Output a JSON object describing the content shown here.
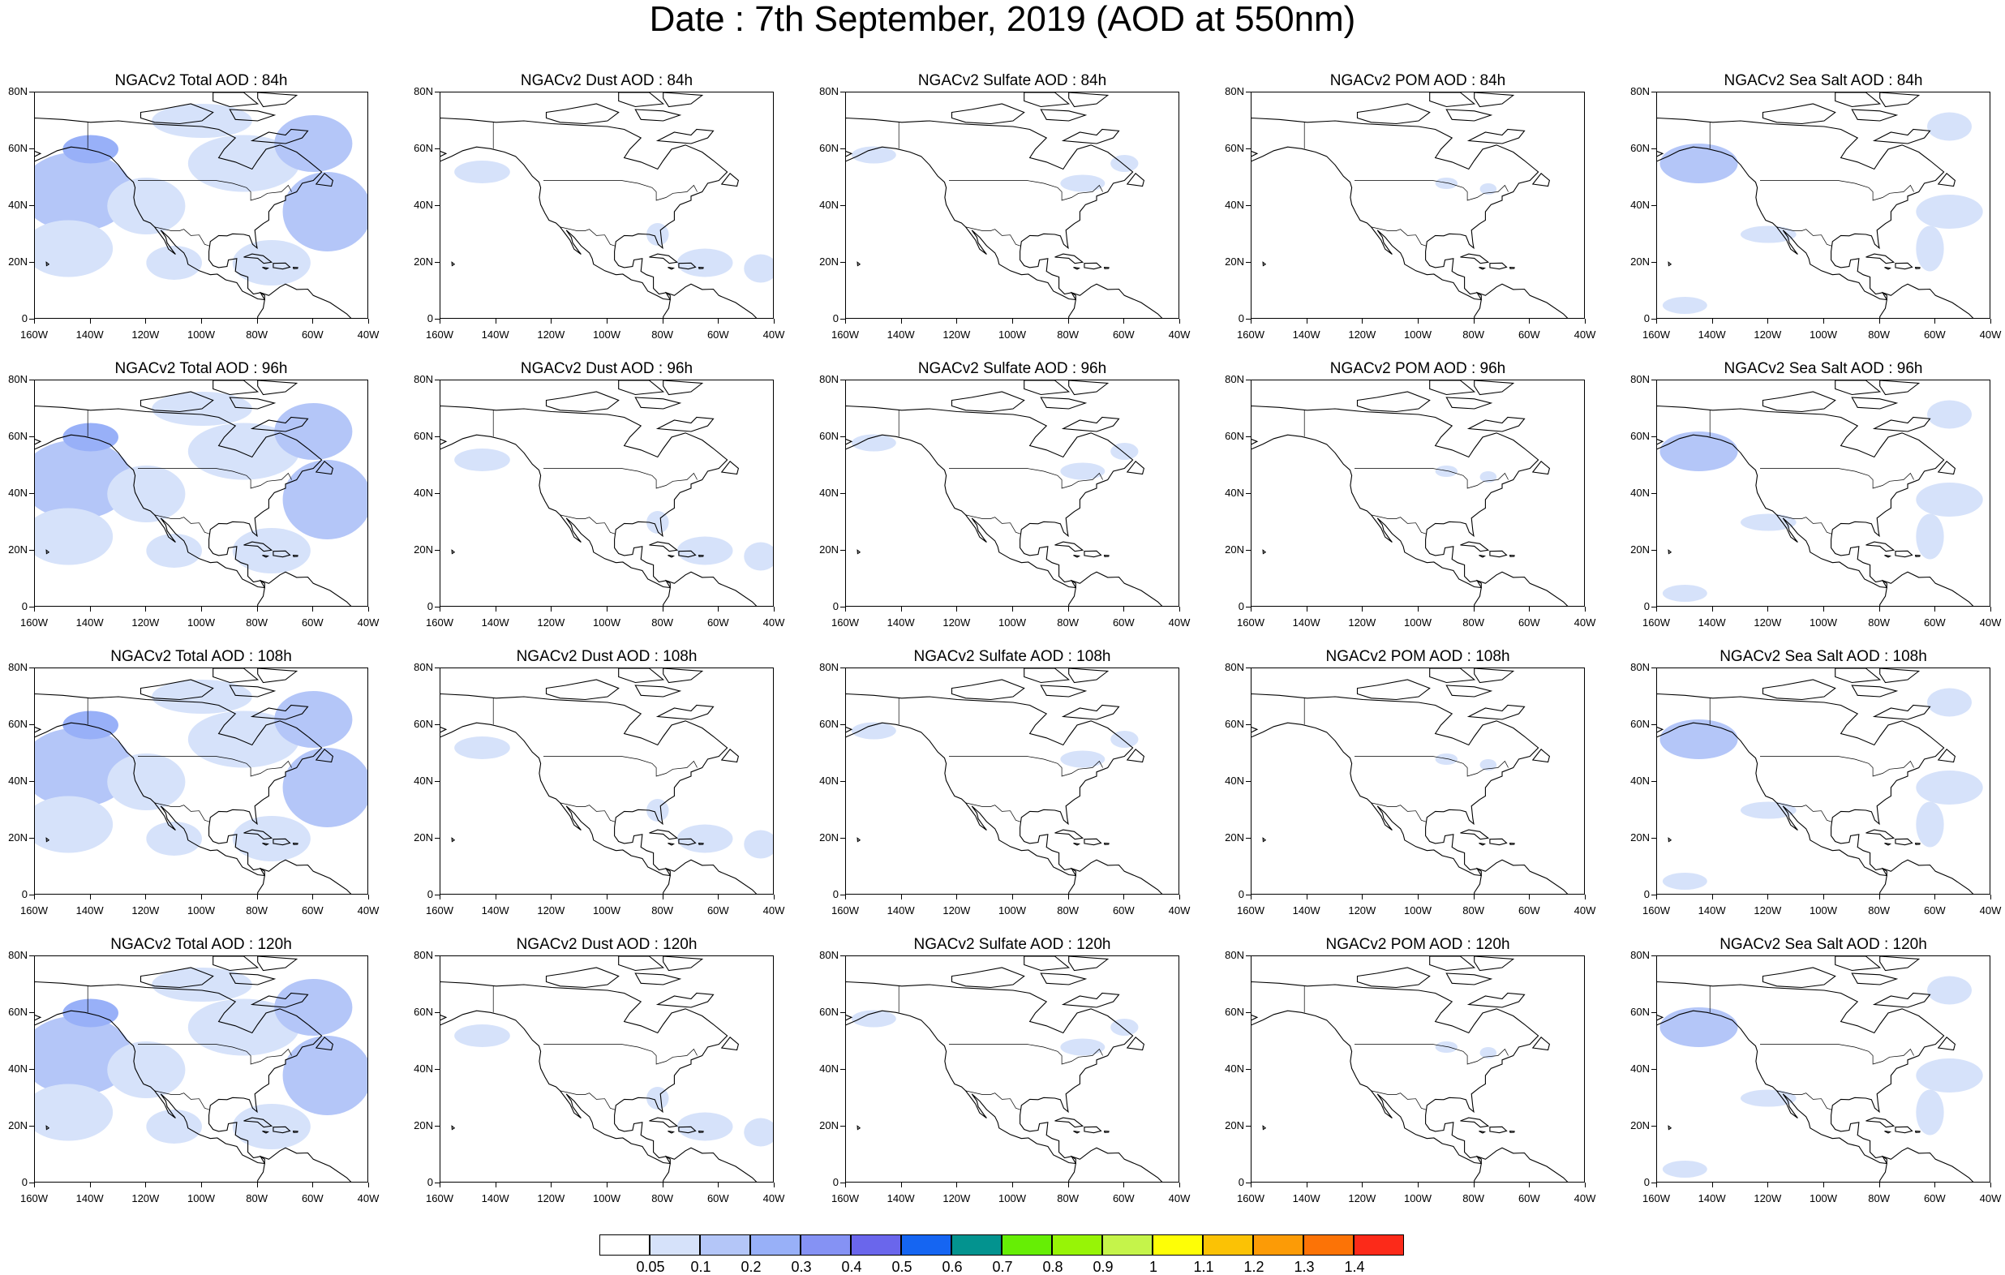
{
  "title": "Date : 7th September, 2019 (AOD at 550nm)",
  "lat_labels": [
    "80N",
    "60N",
    "40N",
    "20N",
    "0"
  ],
  "lon_labels": [
    "160W",
    "140W",
    "120W",
    "100W",
    "80W",
    "60W",
    "40W"
  ],
  "panels": [
    {
      "title": "NGACv2 Total AOD : 84h",
      "species": "total"
    },
    {
      "title": "NGACv2 Dust AOD : 84h",
      "species": "dust"
    },
    {
      "title": "NGACv2 Sulfate AOD : 84h",
      "species": "sulfate"
    },
    {
      "title": "NGACv2 POM AOD : 84h",
      "species": "pom"
    },
    {
      "title": "NGACv2 Sea Salt AOD : 84h",
      "species": "seasalt"
    },
    {
      "title": "NGACv2 Total AOD : 96h",
      "species": "total"
    },
    {
      "title": "NGACv2 Dust AOD : 96h",
      "species": "dust"
    },
    {
      "title": "NGACv2 Sulfate AOD : 96h",
      "species": "sulfate"
    },
    {
      "title": "NGACv2 POM AOD : 96h",
      "species": "pom"
    },
    {
      "title": "NGACv2 Sea Salt AOD : 96h",
      "species": "seasalt"
    },
    {
      "title": "NGACv2 Total AOD : 108h",
      "species": "total"
    },
    {
      "title": "NGACv2 Dust AOD : 108h",
      "species": "dust"
    },
    {
      "title": "NGACv2 Sulfate AOD : 108h",
      "species": "sulfate"
    },
    {
      "title": "NGACv2 POM AOD : 108h",
      "species": "pom"
    },
    {
      "title": "NGACv2 Sea Salt AOD : 108h",
      "species": "seasalt"
    },
    {
      "title": "NGACv2 Total AOD : 120h",
      "species": "total"
    },
    {
      "title": "NGACv2 Dust AOD : 120h",
      "species": "dust"
    },
    {
      "title": "NGACv2 Sulfate AOD : 120h",
      "species": "sulfate"
    },
    {
      "title": "NGACv2 POM AOD : 120h",
      "species": "pom"
    },
    {
      "title": "NGACv2 Sea Salt  AOD : 120h",
      "species": "seasalt"
    }
  ],
  "colorbar": {
    "labels": [
      "0.05",
      "0.1",
      "0.2",
      "0.3",
      "0.4",
      "0.5",
      "0.6",
      "0.7",
      "0.8",
      "0.9",
      "1",
      "1.1",
      "1.2",
      "1.3",
      "1.4"
    ],
    "colors": [
      "#ffffff",
      "#d6e2fa",
      "#b4c6f8",
      "#98b0f8",
      "#8592f4",
      "#6a66ec",
      "#1565f2",
      "#03938f",
      "#66ee05",
      "#97f406",
      "#c5f44a",
      "#fefe06",
      "#fbc205",
      "#fc9b06",
      "#fc7306",
      "#fc2a19"
    ]
  },
  "colors": {
    "aod_low": "#d6e2fa",
    "aod_mid": "#b4c6f8",
    "aod_high": "#98b0f8",
    "coastline": "#000000"
  }
}
